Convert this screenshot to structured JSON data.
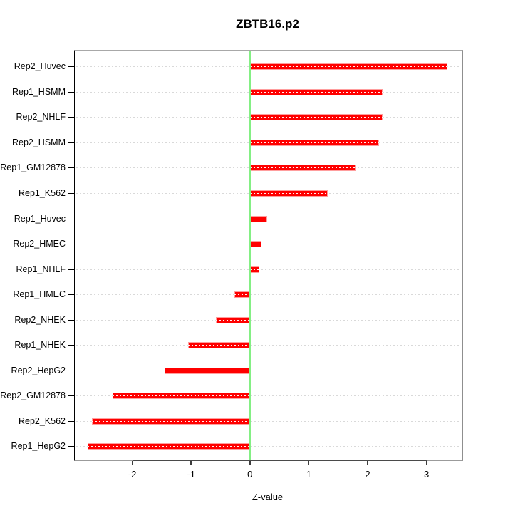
{
  "figure": {
    "title": "ZBTB16.p2"
  },
  "chart_data": {
    "type": "bar",
    "orientation": "horizontal",
    "title": "ZBTB16.p2",
    "xlabel": "Z-value",
    "ylabel": "",
    "categories": [
      "Rep2_Huvec",
      "Rep1_HSMM",
      "Rep2_NHLF",
      "Rep2_HSMM",
      "Rep1_GM12878",
      "Rep1_K562",
      "Rep1_Huvec",
      "Rep2_HMEC",
      "Rep1_NHLF",
      "Rep1_HMEC",
      "Rep2_NHEK",
      "Rep1_NHEK",
      "Rep2_HepG2",
      "Rep2_GM12878",
      "Rep2_K562",
      "Rep1_HepG2"
    ],
    "values": [
      3.36,
      2.26,
      2.26,
      2.19,
      1.8,
      1.32,
      0.29,
      0.2,
      0.16,
      -0.26,
      -0.58,
      -1.05,
      -1.45,
      -2.33,
      -2.69,
      -2.76
    ],
    "x_ticks": [
      -2,
      -1,
      0,
      1,
      2,
      3
    ],
    "xlim": [
      -2.98,
      3.59
    ],
    "zero_reference_line": 0,
    "grid": "dotted horizontal line per category",
    "legend_position": "none",
    "colors": {
      "bar": "#ff0000",
      "bar_edge": "#ff9d9d",
      "bar_inner_dash": "#ffffff",
      "zero_line": "#84ef84",
      "grid_line": "#d9d9d9",
      "box": "#9b9b9b",
      "axis_segment": "#4a4a4a",
      "text": "#000000"
    }
  }
}
